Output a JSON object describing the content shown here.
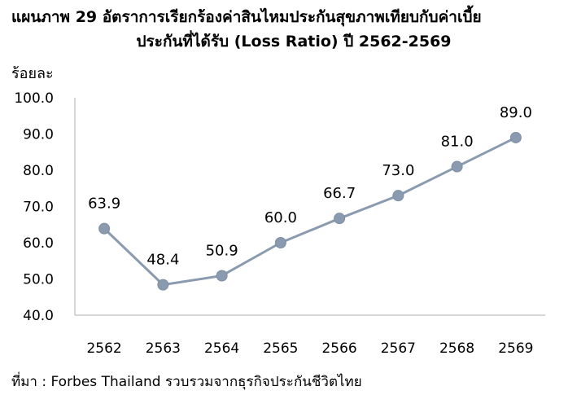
{
  "chart_data": {
    "type": "line",
    "title_line1": "แผนภาพ  29  อัตราการเรียกร้องค่าสินไหมประกันสุขภาพเทียบกับค่าเบี้ย",
    "title_line2": "ประกันที่ได้รับ (Loss Ratio) ปี 2562-2569",
    "ylabel": "ร้อยละ",
    "xlabel": "",
    "categories": [
      "2562",
      "2563",
      "2564",
      "2565",
      "2566",
      "2567",
      "2568",
      "2569"
    ],
    "series": [
      {
        "values": [
          63.9,
          48.4,
          50.9,
          60.0,
          66.7,
          73.0,
          81.0,
          89.0
        ],
        "labels": [
          "63.9",
          "48.4",
          "50.9",
          "60.0",
          "66.7",
          "73.0",
          "81.0",
          "89.0"
        ]
      }
    ],
    "yticks": [
      "100.0",
      "90.0",
      "80.0",
      "70.0",
      "60.0",
      "50.0",
      "40.0"
    ],
    "ylim": [
      40,
      100
    ],
    "grid": false,
    "legend": "none",
    "colors": {
      "line": "#8a9bb0",
      "marker": "#8a9bb0",
      "axis": "#c8c8c8"
    }
  },
  "source": "ที่มา : Forbes Thailand รวบรวมจากธุรกิจประกันชีวิตไทย"
}
